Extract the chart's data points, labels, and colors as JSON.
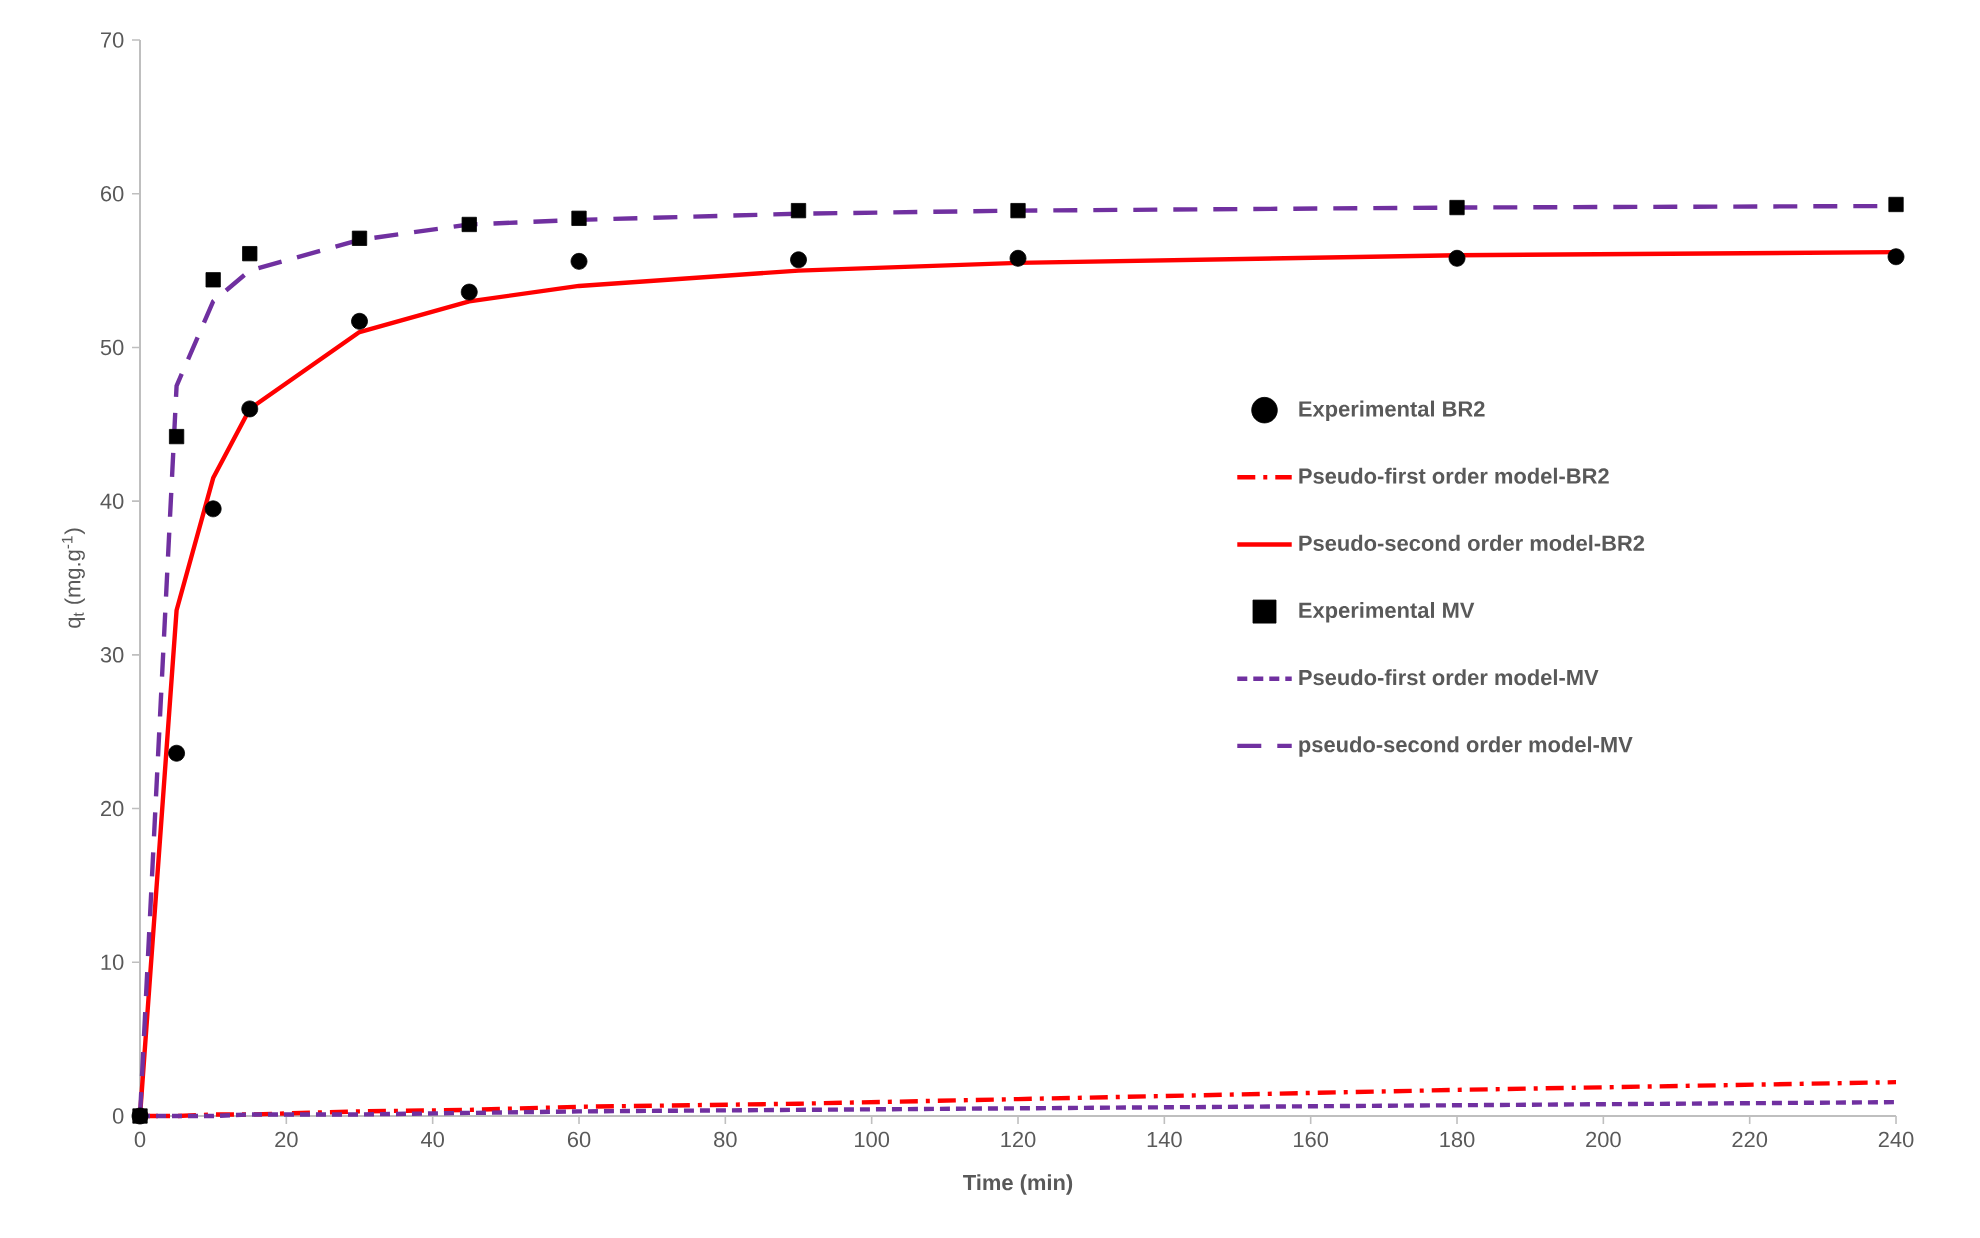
{
  "chart_data": {
    "type": "line",
    "xlabel": "Time (min)",
    "ylabel": "q$_{t}$ (mg.g$^{-1}$)",
    "xlim": [
      0,
      240
    ],
    "xticks": [
      0,
      20,
      40,
      60,
      80,
      100,
      120,
      140,
      160,
      180,
      200,
      220,
      240
    ],
    "ylim": [
      0,
      70
    ],
    "yticks": [
      0,
      10,
      20,
      30,
      40,
      50,
      60,
      70
    ],
    "grid": false,
    "legend": "right",
    "x": [
      0,
      5,
      10,
      15,
      30,
      45,
      60,
      90,
      120,
      180,
      240
    ],
    "series": [
      {
        "name": "Experimental BR2",
        "type": "scatter",
        "marker": "circle",
        "color": "#000000",
        "values": [
          0,
          23.6,
          39.5,
          46,
          51.7,
          53.6,
          55.6,
          55.7,
          55.8,
          55.8,
          55.9
        ]
      },
      {
        "name": "Pseudo-first order model-BR2",
        "line_style": "dashdot",
        "color": "#ff0000",
        "values": [
          0,
          0,
          0.1,
          0.1,
          0.3,
          0.4,
          0.6,
          0.8,
          1.1,
          1.7,
          2.2
        ]
      },
      {
        "name": "Pseudo-second order model-BR2",
        "line_style": "solid",
        "color": "#ff0000",
        "values": [
          0,
          32.9,
          41.5,
          46,
          51,
          53,
          54,
          55,
          55.5,
          56,
          56.2
        ]
      },
      {
        "name": "Experimental MV",
        "type": "scatter",
        "marker": "square",
        "color": "#000000",
        "values": [
          0,
          44.2,
          54.4,
          56.1,
          57.1,
          58,
          58.4,
          58.9,
          58.9,
          59.1,
          59.3
        ]
      },
      {
        "name": "Pseudo-first order model-MV",
        "line_style": "dotted",
        "color": "#7030a0",
        "values": [
          0,
          0,
          0,
          0.1,
          0.1,
          0.2,
          0.3,
          0.4,
          0.5,
          0.7,
          0.9
        ]
      },
      {
        "name": "pseudo-second order model-MV",
        "line_style": "dashed",
        "color": "#7030a0",
        "values": [
          0,
          47.5,
          53,
          55,
          57,
          58,
          58.3,
          58.7,
          58.9,
          59.1,
          59.2
        ]
      }
    ]
  }
}
